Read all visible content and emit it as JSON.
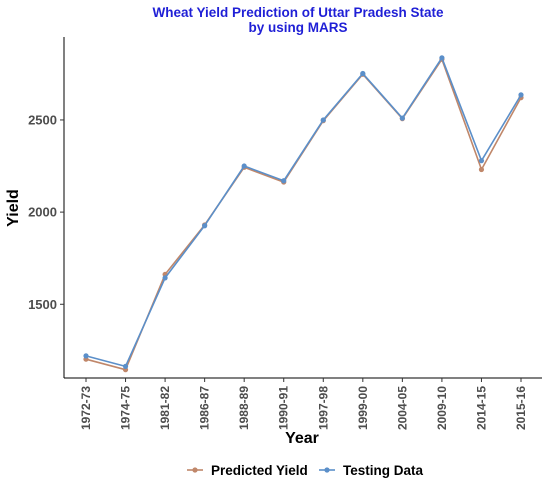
{
  "chart_data": {
    "type": "line",
    "title_lines": [
      "Wheat Yield Prediction of Uttar Pradesh State",
      "by using MARS"
    ],
    "xlabel": "Year",
    "ylabel": "Yield",
    "categories": [
      "1972-73",
      "1974-75",
      "1981-82",
      "1986-87",
      "1988-89",
      "1990-91",
      "1997-98",
      "1999-00",
      "2004-05",
      "2009-10",
      "2014-15",
      "2015-16"
    ],
    "ylim": [
      1100,
      2950
    ],
    "yticks": [
      1500,
      2000,
      2500
    ],
    "grid": false,
    "legend_position": "bottom",
    "series": [
      {
        "name": "Predicted Yield",
        "color": "#c0876a",
        "values": [
          1202,
          1145,
          1662,
          1930,
          2243,
          2163,
          2496,
          2748,
          2507,
          2829,
          2231,
          2621
        ]
      },
      {
        "name": "Testing Data",
        "color": "#5b8fc9",
        "values": [
          1220,
          1163,
          1643,
          1926,
          2250,
          2170,
          2500,
          2752,
          2510,
          2837,
          2279,
          2636
        ]
      }
    ]
  }
}
